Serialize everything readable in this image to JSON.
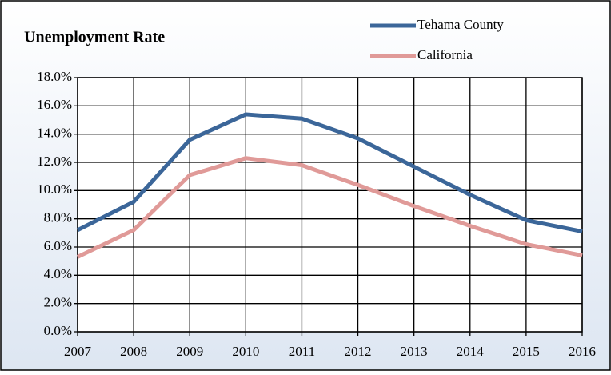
{
  "chart_data": {
    "type": "line",
    "title": "Unemployment Rate",
    "x": [
      2007,
      2008,
      2009,
      2010,
      2011,
      2012,
      2013,
      2014,
      2015,
      2016
    ],
    "xlim": [
      2007,
      2016
    ],
    "xticks": [
      2007,
      2008,
      2009,
      2010,
      2011,
      2012,
      2013,
      2014,
      2015,
      2016
    ],
    "ylim": [
      0,
      18
    ],
    "yticks": [
      {
        "value": 0,
        "label": "0.0%"
      },
      {
        "value": 2,
        "label": "2.0%"
      },
      {
        "value": 4,
        "label": "4.0%"
      },
      {
        "value": 6,
        "label": "6.0%"
      },
      {
        "value": 8,
        "label": "8.0%"
      },
      {
        "value": 10,
        "label": "10.0%"
      },
      {
        "value": 12,
        "label": "12.0%"
      },
      {
        "value": 14,
        "label": "14.0%"
      },
      {
        "value": 16,
        "label": "16.0%"
      },
      {
        "value": 18,
        "label": "18.0%"
      }
    ],
    "grid": true,
    "legend": "top-right",
    "series": [
      {
        "name": "Tehama County",
        "color": "#3b6699",
        "values": [
          7.2,
          9.2,
          13.6,
          15.4,
          15.1,
          13.7,
          11.7,
          9.7,
          7.9,
          7.1
        ]
      },
      {
        "name": "California",
        "color": "#e09a98",
        "values": [
          5.3,
          7.2,
          11.1,
          12.3,
          11.8,
          10.4,
          8.9,
          7.5,
          6.2,
          5.4
        ]
      }
    ]
  }
}
